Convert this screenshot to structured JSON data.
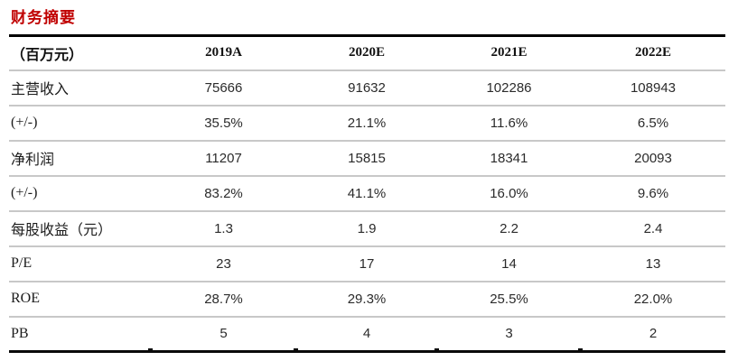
{
  "title": "财务摘要",
  "table": {
    "unit_header": "（百万元）",
    "columns": [
      "2019A",
      "2020E",
      "2021E",
      "2022E"
    ],
    "rows": [
      {
        "label": "主营收入",
        "values": [
          "75666",
          "91632",
          "102286",
          "108943"
        ]
      },
      {
        "label": "(+/-)",
        "values": [
          "35.5%",
          "21.1%",
          "11.6%",
          "6.5%"
        ]
      },
      {
        "label": "净利润",
        "values": [
          "11207",
          "15815",
          "18341",
          "20093"
        ]
      },
      {
        "label": "(+/-)",
        "values": [
          "83.2%",
          "41.1%",
          "16.0%",
          "9.6%"
        ]
      },
      {
        "label": "每股收益（元）",
        "values": [
          "1.3",
          "1.9",
          "2.2",
          "2.4"
        ]
      },
      {
        "label": "P/E",
        "values": [
          "23",
          "17",
          "14",
          "13"
        ]
      },
      {
        "label": "ROE",
        "values": [
          "28.7%",
          "29.3%",
          "25.5%",
          "22.0%"
        ]
      },
      {
        "label": "PB",
        "values": [
          "5",
          "4",
          "3",
          "2"
        ]
      }
    ]
  },
  "colors": {
    "title_red": "#c00000",
    "text": "#1c1c1c",
    "separator_gray": "#c8c8c8",
    "border_black": "#0a0a0a"
  }
}
